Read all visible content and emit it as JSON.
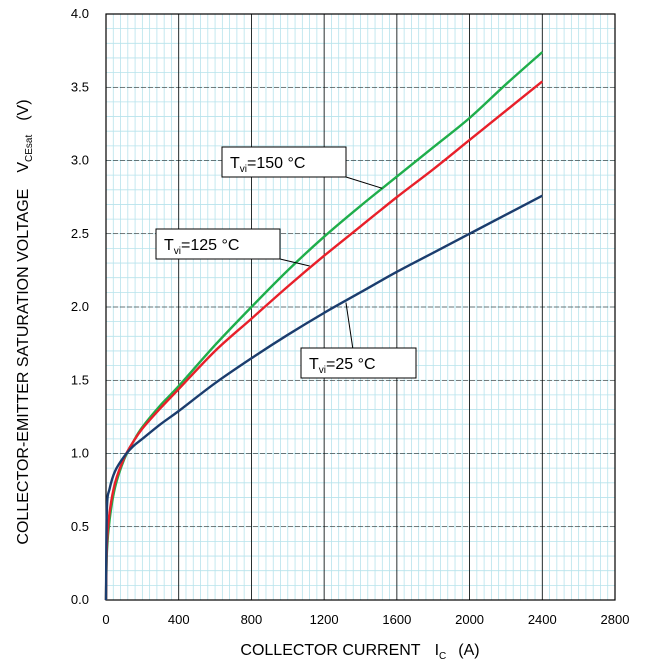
{
  "chart_data": {
    "type": "line",
    "title": "",
    "xlabel": {
      "text": "COLLECTOR CURRENT",
      "symbol": "I",
      "subscript": "C",
      "unit": "(A)"
    },
    "ylabel": {
      "text": "COLLECTOR-EMITTER SATURATION VOLTAGE",
      "symbol": "V",
      "subscript": "CEsat",
      "unit": "(V)"
    },
    "xlim": [
      0,
      2800
    ],
    "ylim": [
      0,
      4.0
    ],
    "x_ticks": [
      "0",
      "400",
      "800",
      "1200",
      "1600",
      "2000",
      "2400",
      "2800"
    ],
    "y_ticks": [
      "0.0",
      "0.5",
      "1.0",
      "1.5",
      "2.0",
      "2.5",
      "3.0",
      "3.5",
      "4.0"
    ],
    "grid": {
      "major": true,
      "minor": true
    },
    "legend": "none",
    "colors": {
      "major_grid": "#000000",
      "minor_grid": "#b7e3ec",
      "tvj25": "#1b3d6e",
      "tvj125": "#e8202a",
      "tvj150": "#1fae4b"
    },
    "series": [
      {
        "label": {
          "symbol": "T",
          "subscript": "vi",
          "text": "=150 °C"
        },
        "color": "#1fae4b",
        "x": [
          0,
          5,
          20,
          50,
          100,
          150,
          200,
          300,
          400,
          600,
          800,
          1000,
          1200,
          1400,
          1600,
          1800,
          2000,
          2200,
          2400
        ],
        "y": [
          0.0,
          0.33,
          0.55,
          0.77,
          0.96,
          1.08,
          1.18,
          1.33,
          1.46,
          1.74,
          2.0,
          2.25,
          2.48,
          2.69,
          2.89,
          3.09,
          3.29,
          3.52,
          3.74
        ]
      },
      {
        "label": {
          "symbol": "T",
          "subscript": "vi",
          "text": "=125 °C"
        },
        "color": "#e8202a",
        "x": [
          0,
          5,
          20,
          50,
          100,
          150,
          200,
          300,
          400,
          600,
          800,
          1000,
          1200,
          1400,
          1600,
          1800,
          2000,
          2200,
          2400
        ],
        "y": [
          0.0,
          0.38,
          0.6,
          0.8,
          0.97,
          1.08,
          1.17,
          1.31,
          1.44,
          1.7,
          1.92,
          2.14,
          2.35,
          2.55,
          2.75,
          2.94,
          3.14,
          3.34,
          3.54
        ]
      },
      {
        "label": {
          "symbol": "T",
          "subscript": "vi",
          "text": "=25 °C"
        },
        "color": "#1b3d6e",
        "x": [
          0,
          5,
          20,
          50,
          100,
          150,
          200,
          300,
          400,
          600,
          800,
          1000,
          1200,
          1400,
          1600,
          1800,
          2000,
          2200,
          2400
        ],
        "y": [
          0.0,
          0.62,
          0.76,
          0.88,
          0.98,
          1.05,
          1.1,
          1.2,
          1.29,
          1.48,
          1.65,
          1.81,
          1.96,
          2.1,
          2.24,
          2.37,
          2.5,
          2.63,
          2.76
        ]
      }
    ],
    "annotations": [
      {
        "symbol": "T",
        "subscript": "vi",
        "text": "=150 °C",
        "series_index": 0,
        "pointer": [
          1520,
          2.81
        ]
      },
      {
        "symbol": "T",
        "subscript": "vi",
        "text": "=125 °C",
        "series_index": 1,
        "pointer": [
          1120,
          2.28
        ]
      },
      {
        "symbol": "T",
        "subscript": "vi",
        "text": "=25 °C",
        "series_index": 2,
        "pointer": [
          1320,
          2.03
        ]
      }
    ]
  }
}
